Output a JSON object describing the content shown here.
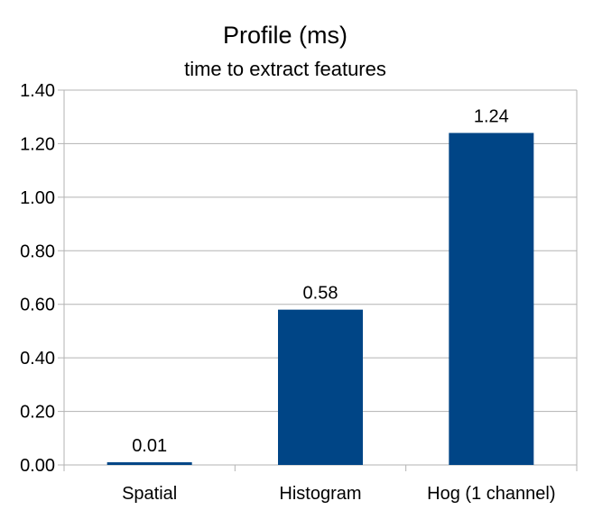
{
  "chart_data": {
    "type": "bar",
    "title": "Profile (ms)",
    "subtitle": "time to extract features",
    "categories": [
      "Spatial",
      "Histogram",
      "Hog (1 channel)"
    ],
    "values": [
      0.01,
      0.58,
      1.24
    ],
    "data_labels": [
      "0.01",
      "0.58",
      "1.24"
    ],
    "ylim": [
      0,
      1.4
    ],
    "yticks": [
      0,
      0.2,
      0.4,
      0.6,
      0.8,
      1.0,
      1.2,
      1.4
    ],
    "ytick_labels": [
      "0.00",
      "0.20",
      "0.40",
      "0.60",
      "0.80",
      "1.00",
      "1.20",
      "1.40"
    ],
    "xlabel": "",
    "ylabel": "",
    "grid": true,
    "legend": "none",
    "bar_color": "#004586"
  }
}
